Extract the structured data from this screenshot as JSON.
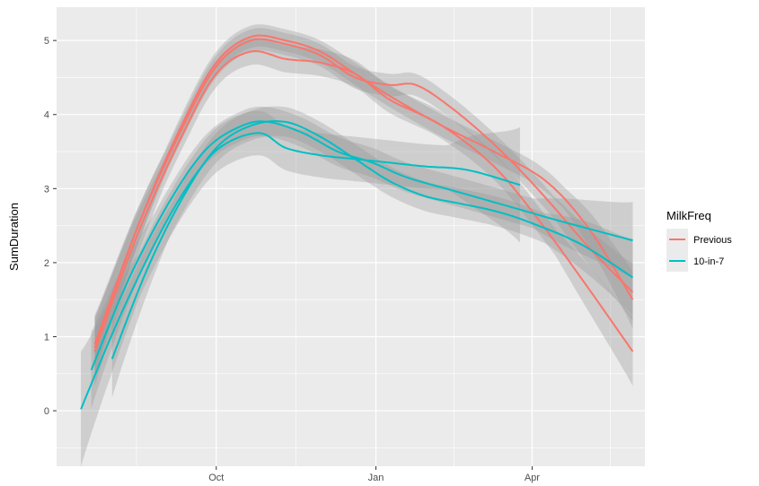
{
  "chart_data": {
    "type": "line",
    "title": "",
    "xlabel": "",
    "ylabel": "SumDuration",
    "x_ticks": [
      {
        "label": "Oct",
        "value": 0
      },
      {
        "label": "Jan",
        "value": 92
      },
      {
        "label": "Apr",
        "value": 182
      }
    ],
    "xlim": [
      -92,
      247
    ],
    "ylim": [
      -0.75,
      5.45
    ],
    "y_ticks": [
      0,
      1,
      2,
      3,
      4,
      5
    ],
    "grid": true,
    "smoothed_with_confidence_band": true,
    "legend": {
      "title": "MilkFreq",
      "placement": "right",
      "entries": [
        {
          "label": "Previous",
          "color": "#F8766D"
        },
        {
          "label": "10-in-7",
          "color": "#00BFC4"
        }
      ]
    },
    "series": [
      {
        "group": "Previous",
        "color": "#F8766D",
        "band": 0.18,
        "points": [
          [
            -70,
            0.8
          ],
          [
            -45,
            2.4
          ],
          [
            -20,
            3.7
          ],
          [
            0,
            4.55
          ],
          [
            20,
            4.85
          ],
          [
            40,
            4.75
          ],
          [
            60,
            4.7
          ],
          [
            80,
            4.55
          ],
          [
            100,
            4.2
          ],
          [
            130,
            3.85
          ],
          [
            160,
            3.3
          ],
          [
            185,
            2.6
          ],
          [
            210,
            1.8
          ],
          [
            240,
            0.8
          ]
        ]
      },
      {
        "group": "Previous",
        "color": "#F8766D",
        "band": 0.15,
        "points": [
          [
            -70,
            0.85
          ],
          [
            -45,
            2.5
          ],
          [
            -20,
            3.85
          ],
          [
            0,
            4.7
          ],
          [
            20,
            5.05
          ],
          [
            40,
            5.0
          ],
          [
            60,
            4.85
          ],
          [
            80,
            4.55
          ],
          [
            100,
            4.25
          ],
          [
            130,
            3.85
          ],
          [
            160,
            3.5
          ],
          [
            190,
            3.1
          ],
          [
            215,
            2.45
          ],
          [
            240,
            1.5
          ]
        ]
      },
      {
        "group": "Previous",
        "color": "#F8766D",
        "band": 0.15,
        "points": [
          [
            -70,
            0.9
          ],
          [
            -45,
            2.5
          ],
          [
            -20,
            3.8
          ],
          [
            0,
            4.65
          ],
          [
            20,
            5.0
          ],
          [
            40,
            4.95
          ],
          [
            60,
            4.8
          ],
          [
            80,
            4.5
          ],
          [
            100,
            4.4
          ],
          [
            115,
            4.4
          ],
          [
            135,
            4.1
          ],
          [
            160,
            3.6
          ],
          [
            185,
            3.0
          ],
          [
            215,
            2.2
          ],
          [
            240,
            1.6
          ]
        ]
      },
      {
        "group": "10-in-7",
        "color": "#00BFC4",
        "band": 0.3,
        "points": [
          [
            -78,
            0.02
          ],
          [
            -55,
            1.3
          ],
          [
            -30,
            2.5
          ],
          [
            -10,
            3.25
          ],
          [
            5,
            3.6
          ],
          [
            25,
            3.75
          ],
          [
            40,
            3.55
          ],
          [
            60,
            3.45
          ],
          [
            80,
            3.4
          ],
          [
            100,
            3.35
          ],
          [
            120,
            3.3
          ],
          [
            145,
            3.25
          ],
          [
            175,
            3.05
          ]
        ]
      },
      {
        "group": "10-in-7",
        "color": "#00BFC4",
        "band": 0.2,
        "points": [
          [
            -72,
            0.55
          ],
          [
            -50,
            1.8
          ],
          [
            -25,
            2.9
          ],
          [
            -5,
            3.55
          ],
          [
            15,
            3.85
          ],
          [
            30,
            3.9
          ],
          [
            50,
            3.75
          ],
          [
            70,
            3.5
          ],
          [
            90,
            3.35
          ],
          [
            110,
            3.15
          ],
          [
            140,
            2.95
          ],
          [
            170,
            2.75
          ],
          [
            200,
            2.55
          ],
          [
            240,
            2.3
          ]
        ]
      },
      {
        "group": "10-in-7",
        "color": "#00BFC4",
        "band": 0.2,
        "points": [
          [
            -60,
            0.7
          ],
          [
            -40,
            1.9
          ],
          [
            -20,
            2.85
          ],
          [
            0,
            3.55
          ],
          [
            20,
            3.85
          ],
          [
            40,
            3.9
          ],
          [
            60,
            3.7
          ],
          [
            80,
            3.4
          ],
          [
            100,
            3.1
          ],
          [
            120,
            2.9
          ],
          [
            140,
            2.8
          ],
          [
            160,
            2.7
          ],
          [
            180,
            2.55
          ],
          [
            210,
            2.25
          ],
          [
            240,
            1.8
          ]
        ]
      }
    ]
  }
}
